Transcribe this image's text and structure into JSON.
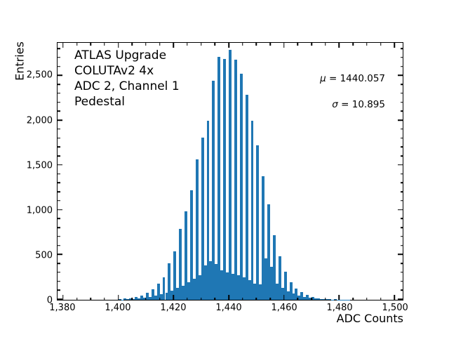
{
  "figure": {
    "background": "#ffffff",
    "accent_color": "#1f77b4"
  },
  "chart_data": {
    "type": "bar",
    "subtype": "histogram",
    "annotation_lines": [
      "ATLAS Upgrade",
      "COLUTAv2 4x",
      "ADC 2, Channel 1",
      "Pedestal"
    ],
    "stats": {
      "mu_symbol": "μ",
      "mu_rest": " = 1440.057",
      "mu_value": 1440.057,
      "sigma_symbol": "σ",
      "sigma_rest": " = 10.895",
      "sigma_value": 10.895
    },
    "xlabel": "ADC Counts",
    "ylabel": "Entries",
    "xlim": [
      1378,
      1503
    ],
    "ylim": [
      0,
      2870
    ],
    "grid": false,
    "legend": null,
    "bar_color": "#1f77b4",
    "x_major_tick_values": [
      1380,
      1400,
      1420,
      1440,
      1460,
      1480,
      1500
    ],
    "x_major_tick_labels": [
      "1,380",
      "1,400",
      "1,420",
      "1,440",
      "1,460",
      "1,480",
      "1,500"
    ],
    "x_minor_tick_values": [
      1385,
      1390,
      1395,
      1405,
      1410,
      1415,
      1425,
      1430,
      1435,
      1445,
      1450,
      1455,
      1465,
      1470,
      1475,
      1485,
      1490,
      1495
    ],
    "y_major_tick_values": [
      0,
      500,
      1000,
      1500,
      2000,
      2500
    ],
    "y_major_tick_labels": [
      "0",
      "500",
      "1,000",
      "1,500",
      "2,000",
      "2,500"
    ],
    "y_minor_tick_values": [
      100,
      200,
      300,
      400,
      600,
      700,
      800,
      900,
      1100,
      1200,
      1300,
      1400,
      1600,
      1700,
      1800,
      1900,
      2100,
      2200,
      2300,
      2400,
      2600,
      2700,
      2800
    ],
    "bin_width": 1,
    "bins_start": 1400,
    "counts": [
      8,
      3,
      12,
      5,
      18,
      8,
      30,
      14,
      46,
      22,
      77,
      34,
      116,
      46,
      182,
      61,
      248,
      81,
      406,
      104,
      538,
      130,
      789,
      157,
      986,
      196,
      1226,
      236,
      1570,
      275,
      1815,
      382,
      2001,
      432,
      2449,
      401,
      2713,
      333,
      2687,
      303,
      2792,
      287,
      2679,
      271,
      2529,
      252,
      2291,
      221,
      2001,
      183,
      1724,
      169,
      1382,
      462,
      1065,
      372,
      722,
      182,
      485,
      132,
      314,
      96,
      195,
      71,
      128,
      46,
      84,
      31,
      52,
      21,
      31,
      14,
      18,
      8,
      11,
      5,
      7,
      4,
      5,
      2,
      3,
      2,
      4,
      1
    ]
  }
}
